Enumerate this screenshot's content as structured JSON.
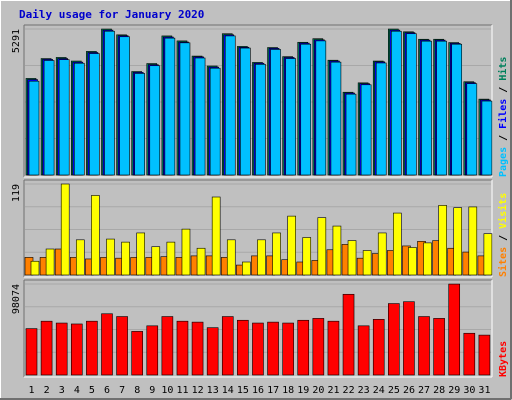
{
  "chart_data": {
    "type": "bar",
    "title": "Daily usage for January 2020",
    "days": [
      1,
      2,
      3,
      4,
      5,
      6,
      7,
      8,
      9,
      10,
      11,
      12,
      13,
      14,
      15,
      16,
      17,
      18,
      19,
      20,
      21,
      22,
      23,
      24,
      25,
      26,
      27,
      28,
      29,
      30,
      31
    ],
    "weekend_days": [
      4,
      5,
      11,
      12,
      18,
      19,
      25,
      26
    ],
    "colors": {
      "title": "#0000cc",
      "background": "#c0c0c0",
      "panel": "#c0c0c0",
      "grid": "#a8a8a8",
      "weekday_label": "#000000",
      "weekend_label": "#008040",
      "hits": "#00805c",
      "files": "#0000ff",
      "pages": "#00c0ff",
      "visits": "#ffff00",
      "sites": "#ff8000",
      "kbytes": "#ff0000"
    },
    "panels": [
      {
        "id": "requests",
        "max_label": "5291",
        "max": 5291,
        "side_labels": [
          {
            "text": "Pages",
            "color": "#00c0ff"
          },
          {
            "text": " / ",
            "color": "#000000"
          },
          {
            "text": "Files",
            "color": "#0000ff"
          },
          {
            "text": " / ",
            "color": "#000000"
          },
          {
            "text": "Hits",
            "color": "#00805c"
          }
        ],
        "series": [
          {
            "name": "Hits",
            "color": "#00805c",
            "values": [
              3500,
              4220,
              4260,
              4130,
              4480,
              5290,
              5080,
              3750,
              4040,
              5040,
              4860,
              4310,
              3950,
              5120,
              4660,
              4080,
              4620,
              4290,
              4810,
              4940,
              4160,
              3000,
              3340,
              4130,
              5290,
              5190,
              4920,
              4920,
              4800,
              3380,
              2750
            ]
          },
          {
            "name": "Files",
            "color": "#0000ff",
            "values": [
              3460,
              4190,
              4220,
              4090,
              4440,
              5250,
              5050,
              3720,
              4000,
              5000,
              4820,
              4280,
              3910,
              5080,
              4630,
              4050,
              4590,
              4260,
              4780,
              4900,
              4130,
              2970,
              3310,
              4100,
              5250,
              5160,
              4890,
              4890,
              4770,
              3350,
              2720
            ]
          },
          {
            "name": "Pages",
            "color": "#00c0ff",
            "values": [
              3400,
              4150,
              4180,
              4050,
              4400,
              5210,
              5010,
              3680,
              3960,
              4960,
              4790,
              4240,
              3870,
              5040,
              4600,
              4010,
              4550,
              4220,
              4740,
              4860,
              4090,
              2930,
              3270,
              4060,
              5210,
              5120,
              4850,
              4850,
              4740,
              3310,
              2680
            ]
          }
        ]
      },
      {
        "id": "visitors",
        "max_label": "119",
        "max": 119,
        "side_labels": [
          {
            "text": "Sites",
            "color": "#ff8000"
          },
          {
            "text": " / ",
            "color": "#000000"
          },
          {
            "text": "Visits",
            "color": "#ffff00"
          }
        ],
        "series": [
          {
            "name": "Visits",
            "color": "#ffff00",
            "values": [
              18,
              34,
              119,
              46,
              104,
              47,
              43,
              55,
              37,
              43,
              60,
              35,
              102,
              46,
              17,
              46,
              55,
              77,
              49,
              75,
              64,
              45,
              32,
              55,
              81,
              36,
              42,
              91,
              88,
              89,
              54
            ],
            "alt_values": []
          },
          {
            "name": "Sites",
            "color": "#ff8000",
            "values": [
              23,
              23,
              34,
              23,
              21,
              23,
              22,
              23,
              23,
              24,
              23,
              25,
              25,
              23,
              13,
              25,
              25,
              20,
              17,
              19,
              33,
              40,
              22,
              28,
              32,
              38,
              44,
              45,
              35,
              30,
              25
            ]
          }
        ]
      },
      {
        "id": "kbytes",
        "max_label": "98074",
        "max": 98074,
        "side_labels": [
          {
            "text": "KBytes",
            "color": "#ff0000"
          }
        ],
        "series": [
          {
            "name": "KBytes",
            "color": "#ff0000",
            "values": [
              50000,
              58000,
              56000,
              55000,
              58000,
              66000,
              63000,
              47000,
              53000,
              63000,
              58000,
              57000,
              51000,
              63000,
              59000,
              56000,
              57000,
              56000,
              59000,
              61000,
              58000,
              87000,
              53000,
              60000,
              77000,
              79000,
              63000,
              61000,
              98000,
              45000,
              43000
            ]
          }
        ]
      }
    ]
  }
}
